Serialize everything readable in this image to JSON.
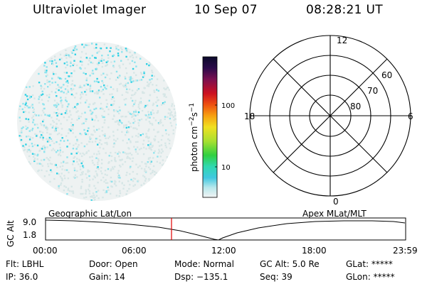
{
  "header": {
    "title": "Ultraviolet Imager",
    "date": "10 Sep 07",
    "time": "08:28:21 UT"
  },
  "colorbar": {
    "label_main": "photon cm",
    "label_sup1": "−2",
    "label_mid": "s",
    "label_sup2": "−1",
    "ticks": [
      "100",
      "10"
    ]
  },
  "polar": {
    "mlt_labels": {
      "top": "12",
      "left": "18",
      "right": "6",
      "bottom": "0"
    },
    "lat_labels": [
      "60",
      "70",
      "80"
    ]
  },
  "orbit": {
    "axis_label": "GC Alt",
    "y_ticks": [
      "9.0",
      "1.8"
    ],
    "left_title": "Geographic Lat/Lon",
    "right_title": "Apex MLat/MLT",
    "x_ticks": [
      "00:00",
      "06:00",
      "12:00",
      "18:00",
      "23:59"
    ]
  },
  "info_row1": {
    "flt": "Flt: LBHL",
    "door": "Door: Open",
    "mode": "Mode: Normal",
    "gcalt": "GC Alt: 5.0 Re",
    "glat": "GLat: *****"
  },
  "info_row2": {
    "ip": "IP: 36.0",
    "gain": "Gain: 14",
    "dsp": "Dsp: −135.1",
    "seq": "Seq: 39",
    "glon": "GLon: *****"
  },
  "colors": {
    "background": "#ffffff",
    "marker": "#e00000",
    "speckle": "#4fd9e8"
  }
}
